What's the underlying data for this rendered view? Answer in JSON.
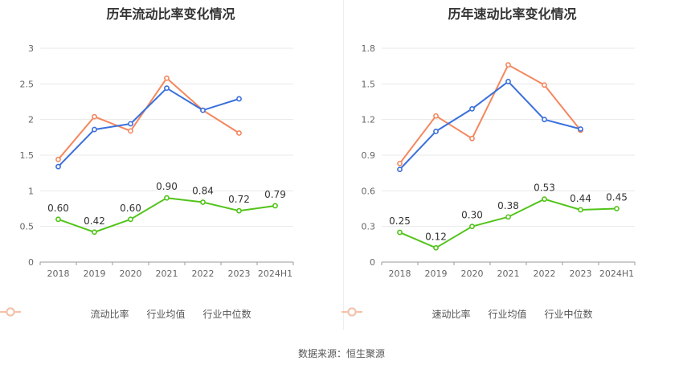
{
  "chart_data": [
    {
      "type": "line",
      "title": "历年流动比率变化情况",
      "categories": [
        "2018",
        "2019",
        "2020",
        "2021",
        "2022",
        "2023",
        "2024H1"
      ],
      "ylim": [
        0,
        3
      ],
      "yticks": [
        "0",
        "0.5",
        "1",
        "1.5",
        "2",
        "2.5",
        "3"
      ],
      "ytick_values": [
        0,
        0.5,
        1,
        1.5,
        2,
        2.5,
        3
      ],
      "series": [
        {
          "name": "流动比率",
          "color": "#52c41a",
          "values": [
            0.6,
            0.42,
            0.6,
            0.9,
            0.84,
            0.72,
            0.79
          ],
          "labels": [
            "0.60",
            "0.42",
            "0.60",
            "0.90",
            "0.84",
            "0.72",
            "0.79"
          ]
        },
        {
          "name": "行业均值",
          "color": "#3a6fdc",
          "values": [
            1.34,
            1.86,
            1.94,
            2.44,
            2.13,
            2.29,
            null
          ]
        },
        {
          "name": "行业中位数",
          "color": "#f4875e",
          "values": [
            1.44,
            2.04,
            1.84,
            2.58,
            2.13,
            1.81,
            null
          ]
        }
      ]
    },
    {
      "type": "line",
      "title": "历年速动比率变化情况",
      "categories": [
        "2018",
        "2019",
        "2020",
        "2021",
        "2022",
        "2023",
        "2024H1"
      ],
      "ylim": [
        0,
        1.8
      ],
      "yticks": [
        "0",
        "0.3",
        "0.6",
        "0.9",
        "1.2",
        "1.5",
        "1.8"
      ],
      "ytick_values": [
        0,
        0.3,
        0.6,
        0.9,
        1.2,
        1.5,
        1.8
      ],
      "series": [
        {
          "name": "速动比率",
          "color": "#52c41a",
          "values": [
            0.25,
            0.12,
            0.3,
            0.38,
            0.53,
            0.44,
            0.45
          ],
          "labels": [
            "0.25",
            "0.12",
            "0.30",
            "0.38",
            "0.53",
            "0.44",
            "0.45"
          ]
        },
        {
          "name": "行业均值",
          "color": "#3a6fdc",
          "values": [
            0.78,
            1.1,
            1.29,
            1.52,
            1.2,
            1.12,
            null
          ]
        },
        {
          "name": "行业中位数",
          "color": "#f4875e",
          "values": [
            0.83,
            1.23,
            1.04,
            1.66,
            1.49,
            1.11,
            null
          ]
        }
      ]
    }
  ],
  "source": "数据来源：恒生聚源"
}
